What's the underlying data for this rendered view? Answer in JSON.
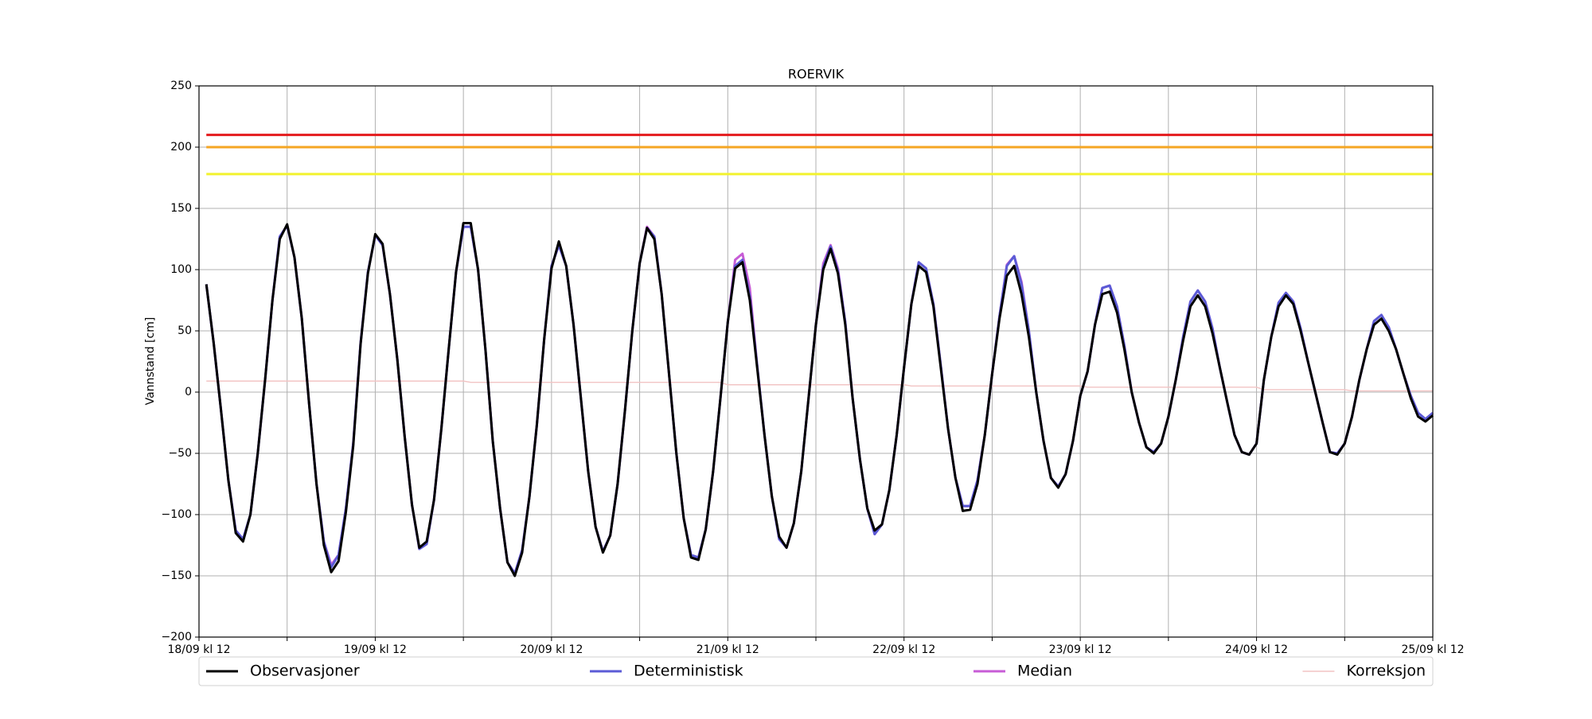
{
  "chart_data": {
    "type": "line",
    "title": "ROERVIK",
    "y_label": "Vannstand [cm]",
    "xlim": [
      0,
      168
    ],
    "xticks": [
      {
        "value": 0,
        "label": "18/09 kl 12"
      },
      {
        "value": 24,
        "label": "19/09 kl 12"
      },
      {
        "value": 48,
        "label": "20/09 kl 12"
      },
      {
        "value": 72,
        "label": "21/09 kl 12"
      },
      {
        "value": 96,
        "label": "22/09 kl 12"
      },
      {
        "value": 120,
        "label": "23/09 kl 12"
      },
      {
        "value": 144,
        "label": "24/09 kl 12"
      },
      {
        "value": 168,
        "label": "25/09 kl 12"
      }
    ],
    "xticks_minor": [
      12,
      36,
      60,
      84,
      108,
      132,
      156
    ],
    "ylim": [
      -200,
      250
    ],
    "yticks": [
      {
        "value": -200,
        "label": "−200"
      },
      {
        "value": -150,
        "label": "−150"
      },
      {
        "value": -100,
        "label": "−100"
      },
      {
        "value": -50,
        "label": "−50"
      },
      0,
      50,
      100,
      150,
      200,
      250
    ],
    "grid": true,
    "legend": "bottom",
    "hlines": [
      {
        "value": 210,
        "color": "#e41a1c"
      },
      {
        "value": 200,
        "color": "#f5a623"
      },
      {
        "value": 178,
        "color": "#f2f22e"
      }
    ],
    "x": [
      1,
      2,
      3,
      4,
      5,
      6,
      7,
      8,
      9,
      10,
      11,
      12,
      13,
      14,
      15,
      16,
      17,
      18,
      19,
      20,
      21,
      22,
      23,
      24,
      25,
      26,
      27,
      28,
      29,
      30,
      31,
      32,
      33,
      34,
      35,
      36,
      37,
      38,
      39,
      40,
      41,
      42,
      43,
      44,
      45,
      46,
      47,
      48,
      49,
      50,
      51,
      52,
      53,
      54,
      55,
      56,
      57,
      58,
      59,
      60,
      61,
      62,
      63,
      64,
      65,
      66,
      67,
      68,
      69,
      70,
      71,
      72,
      73,
      74,
      75,
      76,
      77,
      78,
      79,
      80,
      81,
      82,
      83,
      84,
      85,
      86,
      87,
      88,
      89,
      90,
      91,
      92,
      93,
      94,
      95,
      96,
      97,
      98,
      99,
      100,
      101,
      102,
      103,
      104,
      105,
      106,
      107,
      108,
      109,
      110,
      111,
      112,
      113,
      114,
      115,
      116,
      117,
      118,
      119,
      120,
      121,
      122,
      123,
      124,
      125,
      126,
      127,
      128,
      129,
      130,
      131,
      132,
      133,
      134,
      135,
      136,
      137,
      138,
      139,
      140,
      141,
      142,
      143,
      144,
      145,
      146,
      147,
      148,
      149,
      150,
      151,
      152,
      153,
      154,
      155,
      156,
      157,
      158,
      159,
      160,
      161,
      162,
      163,
      164,
      165,
      166,
      167,
      168
    ],
    "series": [
      {
        "name": "Observasjoner",
        "color": "#000000",
        "width": 2.5,
        "values": [
          88,
          40,
          -15,
          -72,
          -115,
          -122,
          -100,
          -50,
          10,
          75,
          125,
          137,
          110,
          60,
          -10,
          -75,
          -125,
          -147,
          -138,
          -98,
          -44,
          39,
          97,
          129,
          121,
          80,
          27,
          -36,
          -92,
          -127,
          -122,
          -88,
          -30,
          35,
          98,
          138,
          138,
          100,
          35,
          -40,
          -95,
          -139,
          -150,
          -131,
          -85,
          -27,
          43,
          101,
          123,
          103,
          55,
          -5,
          -65,
          -110,
          -131,
          -117,
          -75,
          -15,
          50,
          105,
          134,
          125,
          80,
          15,
          -50,
          -103,
          -135,
          -137,
          -112,
          -65,
          -5,
          57,
          101,
          106,
          75,
          20,
          -35,
          -85,
          -118,
          -127,
          -107,
          -65,
          -5,
          55,
          100,
          117,
          97,
          55,
          -5,
          -55,
          -95,
          -113,
          -108,
          -80,
          -35,
          20,
          72,
          103,
          98,
          70,
          20,
          -30,
          -70,
          -97,
          -96,
          -75,
          -35,
          15,
          60,
          95,
          103,
          80,
          45,
          0,
          -40,
          -70,
          -78,
          -67,
          -40,
          -3,
          17,
          55,
          80,
          82,
          65,
          35,
          0,
          -25,
          -45,
          -50,
          -42,
          -20,
          10,
          42,
          70,
          79,
          70,
          48,
          20,
          -8,
          -35,
          -49,
          -51,
          -42,
          10,
          45,
          70,
          79,
          72,
          50,
          25,
          0,
          -25,
          -49,
          -51,
          -42,
          -20,
          10,
          35,
          55,
          60,
          50,
          35,
          15,
          -5,
          -20,
          -24,
          -19
        ]
      },
      {
        "name": "Deterministisk",
        "color": "#5b5bd6",
        "width": 2.5,
        "values": [
          88,
          40,
          -15,
          -72,
          -113,
          -120,
          -100,
          -50,
          10,
          75,
          127,
          136,
          110,
          60,
          -10,
          -75,
          -122,
          -143,
          -133,
          -95,
          -42,
          40,
          98,
          128,
          120,
          80,
          27,
          -36,
          -92,
          -128,
          -124,
          -88,
          -30,
          35,
          98,
          135,
          135,
          100,
          35,
          -40,
          -95,
          -139,
          -148,
          -129,
          -85,
          -27,
          43,
          103,
          120,
          103,
          55,
          -5,
          -65,
          -110,
          -130,
          -117,
          -75,
          -15,
          50,
          105,
          134,
          127,
          80,
          15,
          -50,
          -103,
          -133,
          -135,
          -112,
          -65,
          -5,
          57,
          103,
          108,
          78,
          22,
          -35,
          -85,
          -120,
          -127,
          -107,
          -65,
          -5,
          55,
          102,
          119,
          99,
          57,
          -5,
          -55,
          -95,
          -116,
          -108,
          -80,
          -35,
          20,
          72,
          106,
          101,
          72,
          22,
          -30,
          -70,
          -93,
          -93,
          -72,
          -35,
          15,
          62,
          103,
          111,
          88,
          50,
          0,
          -40,
          -70,
          -77,
          -67,
          -40,
          -3,
          17,
          55,
          85,
          87,
          70,
          38,
          0,
          -25,
          -45,
          -49,
          -42,
          -20,
          10,
          45,
          74,
          83,
          74,
          52,
          20,
          -8,
          -35,
          -49,
          -51,
          -42,
          10,
          45,
          73,
          81,
          74,
          52,
          25,
          0,
          -25,
          -49,
          -50,
          -42,
          -20,
          10,
          35,
          58,
          63,
          53,
          35,
          15,
          -3,
          -17,
          -22,
          -17
        ]
      },
      {
        "name": "Median",
        "color": "#c75cd6",
        "width": 2.5,
        "values": [
          88,
          40,
          -15,
          -72,
          -113,
          -120,
          -100,
          -50,
          10,
          75,
          127,
          136,
          110,
          60,
          -10,
          -75,
          -122,
          -141,
          -133,
          -95,
          -42,
          40,
          98,
          128,
          120,
          80,
          27,
          -36,
          -92,
          -128,
          -124,
          -88,
          -30,
          35,
          98,
          135,
          135,
          100,
          35,
          -40,
          -95,
          -139,
          -148,
          -129,
          -85,
          -27,
          43,
          103,
          120,
          103,
          55,
          -5,
          -65,
          -110,
          -130,
          -117,
          -75,
          -15,
          50,
          105,
          135,
          127,
          80,
          15,
          -50,
          -103,
          -133,
          -135,
          -112,
          -65,
          -5,
          57,
          108,
          113,
          85,
          22,
          -35,
          -85,
          -120,
          -127,
          -107,
          -65,
          -5,
          55,
          105,
          120,
          101,
          57,
          -5,
          -55,
          -95,
          -116,
          -108,
          -80,
          -35,
          20,
          72,
          106,
          101,
          72,
          22,
          -30,
          -70,
          -93,
          -93,
          -72,
          -35,
          15,
          62,
          104,
          111,
          90,
          50,
          0,
          -40,
          -70,
          -77,
          -67,
          -40,
          -3,
          17,
          55,
          85,
          87,
          70,
          38,
          0,
          -25,
          -45,
          -49,
          -42,
          -20,
          10,
          45,
          74,
          83,
          74,
          52,
          20,
          -8,
          -35,
          -49,
          -51,
          -42,
          10,
          45,
          73,
          81,
          74,
          52,
          25,
          0,
          -25,
          -49,
          -50,
          -42,
          -20,
          10,
          35,
          58,
          63,
          53,
          35,
          15,
          -3,
          -17,
          -22,
          -17
        ]
      },
      {
        "name": "Korreksjon",
        "color": "#f2c4c4",
        "width": 1.2,
        "values": [
          9,
          9,
          9,
          9,
          9,
          9,
          9,
          9,
          9,
          9,
          9,
          9,
          9,
          9,
          9,
          9,
          9,
          9,
          9,
          9,
          9,
          9,
          9,
          9,
          9,
          9,
          9,
          9,
          9,
          9,
          9,
          9,
          9,
          9,
          9,
          9,
          8,
          8,
          8,
          8,
          8,
          8,
          8,
          8,
          8,
          8,
          8,
          8,
          8,
          8,
          8,
          8,
          8,
          8,
          8,
          8,
          8,
          8,
          8,
          8,
          8,
          8,
          8,
          8,
          8,
          8,
          8,
          8,
          8,
          8,
          8,
          6,
          6,
          6,
          6,
          6,
          6,
          6,
          6,
          6,
          6,
          6,
          6,
          6,
          6,
          6,
          6,
          6,
          6,
          6,
          6,
          6,
          6,
          6,
          6,
          6,
          5,
          5,
          5,
          5,
          5,
          5,
          5,
          5,
          5,
          5,
          5,
          5,
          5,
          5,
          5,
          5,
          5,
          5,
          5,
          5,
          5,
          5,
          5,
          5,
          4,
          4,
          4,
          4,
          4,
          4,
          4,
          4,
          4,
          4,
          4,
          4,
          4,
          4,
          4,
          4,
          4,
          4,
          4,
          4,
          4,
          4,
          4,
          4,
          2,
          2,
          2,
          2,
          2,
          2,
          2,
          2,
          2,
          2,
          2,
          2,
          1,
          1,
          1,
          1,
          1,
          1,
          1,
          1,
          1,
          1,
          1,
          1
        ]
      }
    ]
  }
}
